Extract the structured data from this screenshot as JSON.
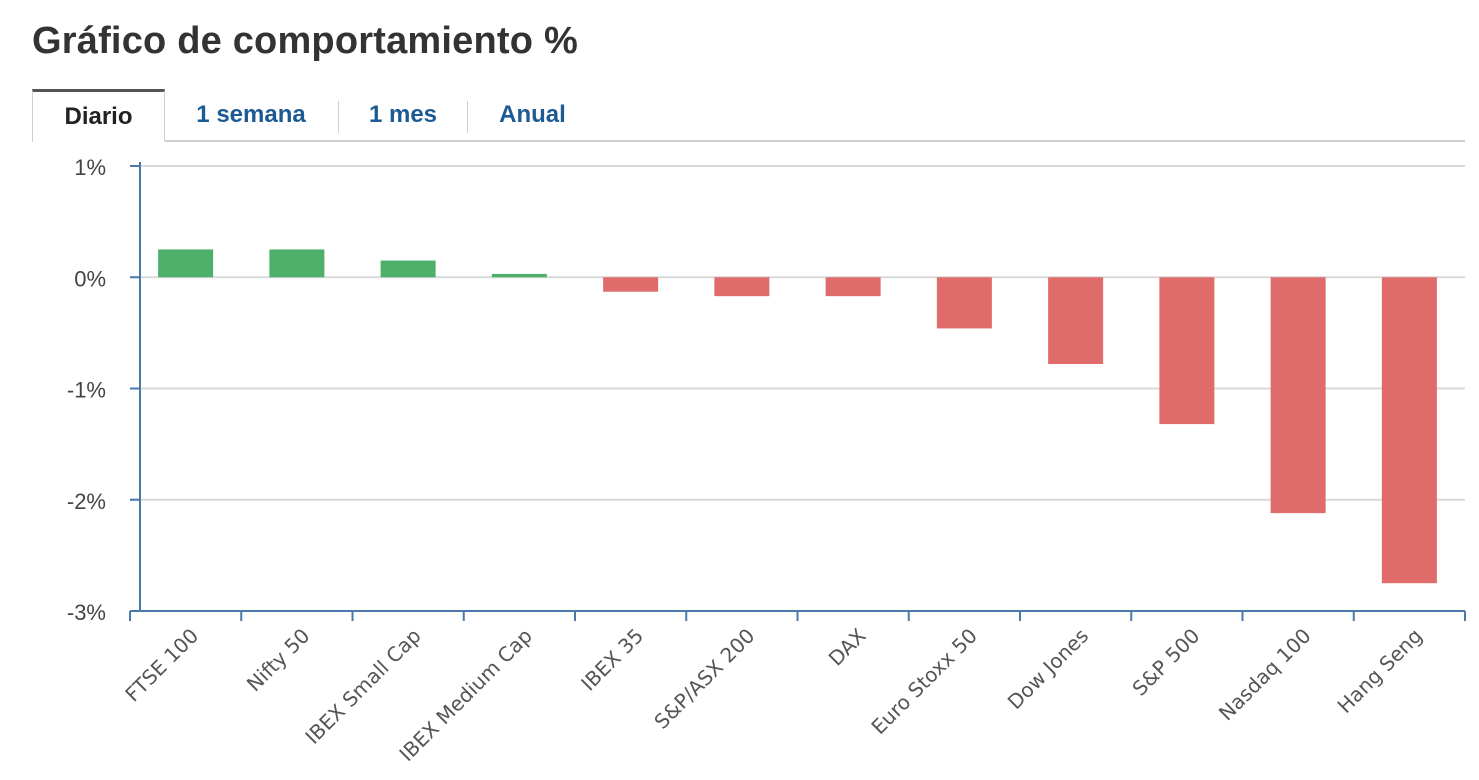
{
  "title": "Gráfico de comportamiento %",
  "tabs": [
    {
      "label": "Diario",
      "active": true
    },
    {
      "label": "1 semana",
      "active": false
    },
    {
      "label": "1 mes",
      "active": false
    },
    {
      "label": "Anual",
      "active": false
    }
  ],
  "colors": {
    "positive": "#4caf6a",
    "negative": "#e06b6b",
    "axis": "#4a78a8",
    "grid": "#d9d9d9",
    "tab_link": "#1c5a94"
  },
  "chart_data": {
    "type": "bar",
    "title": "",
    "xlabel": "",
    "ylabel": "",
    "ylim": [
      -3,
      1
    ],
    "y_ticks": [
      1,
      0,
      -1,
      -2,
      -3
    ],
    "y_tick_labels": [
      "1%",
      "0%",
      "-1%",
      "-2%",
      "-3%"
    ],
    "grid": true,
    "categories": [
      "FTSE 100",
      "Nifty 50",
      "IBEX Small Cap",
      "IBEX Medium Cap",
      "IBEX 35",
      "S&P/ASX 200",
      "DAX",
      "Euro Stoxx 50",
      "Dow Jones",
      "S&P 500",
      "Nasdaq 100",
      "Hang Seng"
    ],
    "values": [
      0.25,
      0.25,
      0.15,
      0.03,
      -0.13,
      -0.17,
      -0.17,
      -0.46,
      -0.78,
      -1.32,
      -2.12,
      -2.75
    ]
  }
}
